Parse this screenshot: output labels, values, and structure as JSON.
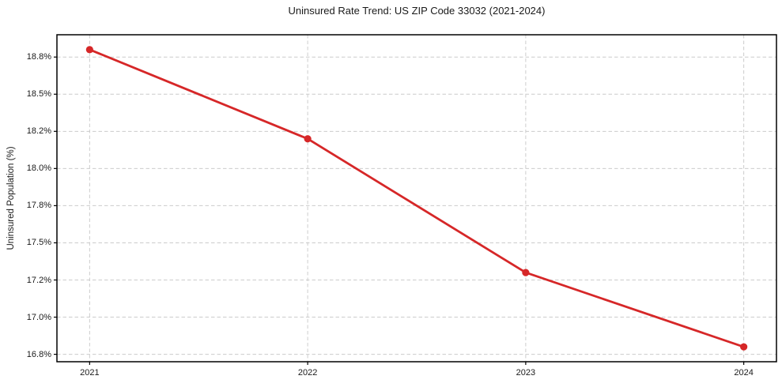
{
  "chart_data": {
    "type": "line",
    "title": "Uninsured Rate Trend: US ZIP Code 33032 (2021-2024)",
    "xlabel": "",
    "ylabel": "Uninsured Population (%)",
    "x": [
      2021,
      2022,
      2023,
      2024
    ],
    "values": [
      18.8,
      18.2,
      17.3,
      16.8
    ],
    "x_ticks": [
      {
        "value": 2021,
        "label": "2021"
      },
      {
        "value": 2022,
        "label": "2022"
      },
      {
        "value": 2023,
        "label": "2023"
      },
      {
        "value": 2024,
        "label": "2024"
      }
    ],
    "y_ticks": [
      {
        "value": 16.75,
        "label": "16.8%"
      },
      {
        "value": 17.0,
        "label": "17.0%"
      },
      {
        "value": 17.25,
        "label": "17.2%"
      },
      {
        "value": 17.5,
        "label": "17.5%"
      },
      {
        "value": 17.75,
        "label": "17.8%"
      },
      {
        "value": 18.0,
        "label": "18.0%"
      },
      {
        "value": 18.25,
        "label": "18.2%"
      },
      {
        "value": 18.5,
        "label": "18.5%"
      },
      {
        "value": 18.75,
        "label": "18.8%"
      }
    ],
    "xlim": [
      2020.85,
      2024.15
    ],
    "ylim": [
      16.7,
      18.9
    ],
    "grid": true,
    "grid_style": "dashed",
    "legend_position": "none",
    "line_color": "#d62728",
    "marker": "circle",
    "grid_color": "#cccccc",
    "spine_color": "#000000",
    "background_color": "#ffffff"
  }
}
